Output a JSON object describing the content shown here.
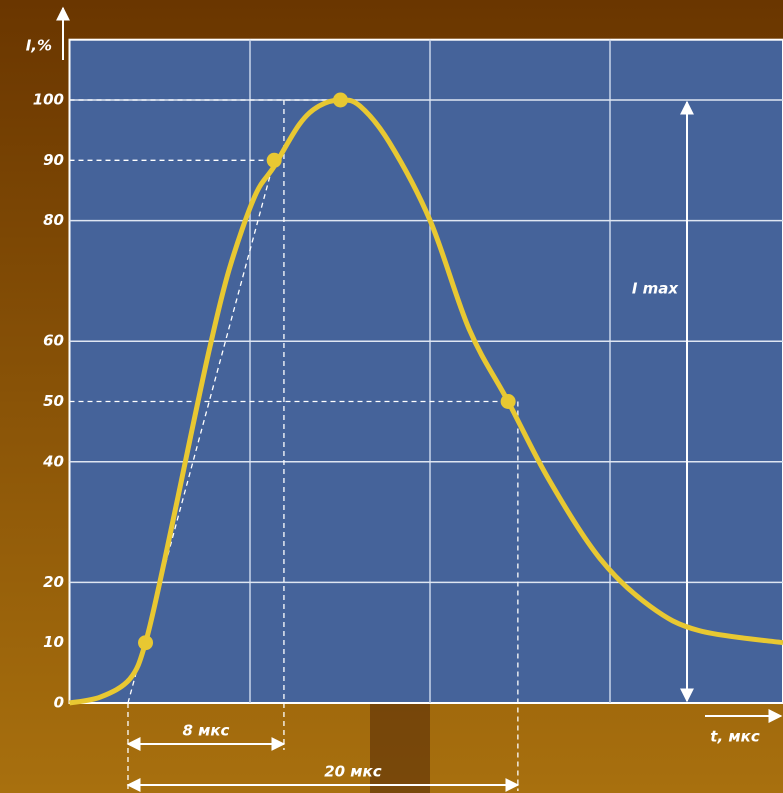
{
  "chart_data": {
    "type": "line",
    "y_label": "I,%",
    "x_label": "t, мкс",
    "x": [
      -3,
      -1.4,
      0.1,
      0.9,
      1.9,
      3.2,
      4.2,
      5.2,
      6.5,
      7.5,
      8.8,
      9.8,
      10.9,
      11.9,
      13.4,
      15.5,
      17.5,
      19.5,
      21.6,
      24.2,
      26.8,
      29.3,
      33.6
    ],
    "series": [
      {
        "color": "#e8c832",
        "values": [
          0,
          1,
          4,
          10,
          24,
          44,
          59,
          72,
          84,
          89,
          96,
          99,
          100,
          99,
          93,
          80,
          62,
          50,
          37,
          24,
          16,
          12,
          10
        ]
      }
    ],
    "markers": {
      "x": [
        0.9,
        7.5,
        10.9,
        19.5
      ],
      "values": [
        10,
        90,
        100,
        50
      ],
      "color": "#e8c832"
    },
    "xlim": [
      -3,
      33.6
    ],
    "ylim": [
      0,
      110
    ],
    "yticks": [
      0,
      10,
      20,
      40,
      50,
      60,
      80,
      90,
      100
    ],
    "annotations": [
      {
        "label": "8 мкс",
        "value": 8
      },
      {
        "label": "20 мкс",
        "value": 20
      }
    ],
    "amplitude_label": "I max"
  }
}
